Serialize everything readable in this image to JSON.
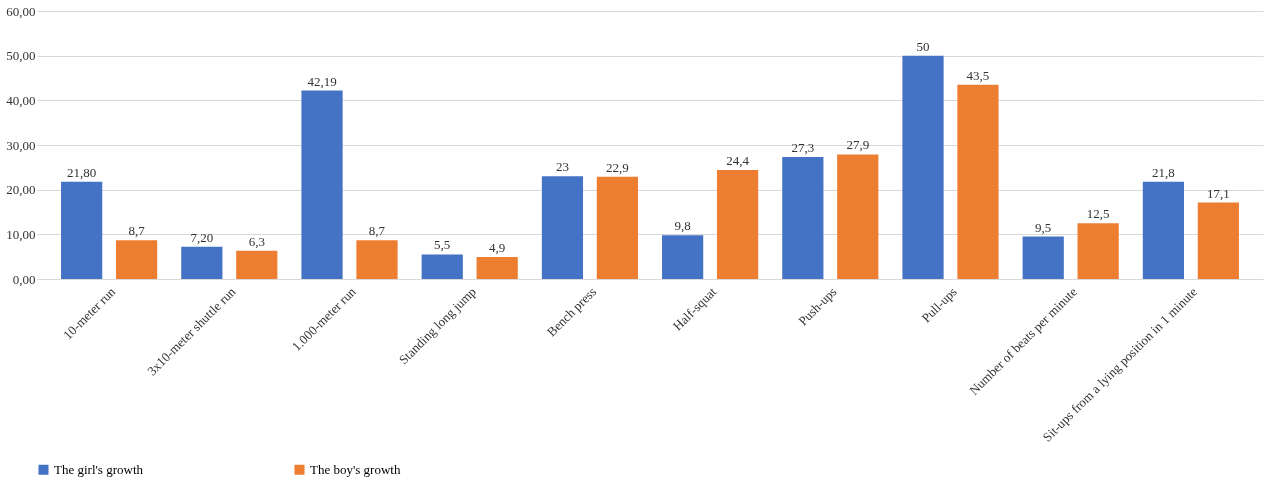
{
  "chart_data": {
    "type": "bar",
    "categories": [
      "10-meter run",
      "3x10-meter shuttle run",
      "1.000-meter run",
      "Standing long jump",
      "Bench press",
      "Half-squat",
      "Push-ups",
      "Pull-ups",
      "Number of beats per minute",
      "Sit-ups from a lying position in 1 minute"
    ],
    "series": [
      {
        "name": "The girl's growth",
        "color": "#4472c4",
        "values": [
          21.8,
          7.2,
          42.19,
          5.5,
          23,
          9.8,
          27.3,
          50,
          9.5,
          21.8
        ],
        "value_labels": [
          "21,80",
          "7,20",
          "42,19",
          "5,5",
          "23",
          "9,8",
          "27,3",
          "50",
          "9,5",
          "21,8"
        ]
      },
      {
        "name": "The boy's growth",
        "color": "#ed7d31",
        "values": [
          8.7,
          6.3,
          8.7,
          4.9,
          22.9,
          24.4,
          27.9,
          43.5,
          12.5,
          17.1
        ],
        "value_labels": [
          "8,7",
          "6,3",
          "8,7",
          "4,9",
          "22,9",
          "24,4",
          "27,9",
          "43,5",
          "12,5",
          "17,1"
        ]
      }
    ],
    "ylim": [
      0,
      60
    ],
    "yticks": [
      {
        "value": 0,
        "label": "0,00"
      },
      {
        "value": 10,
        "label": "10,00"
      },
      {
        "value": 20,
        "label": "20,00"
      },
      {
        "value": 30,
        "label": "30,00"
      },
      {
        "value": 40,
        "label": "40,00"
      },
      {
        "value": 50,
        "label": "50,00"
      },
      {
        "value": 60,
        "label": "60,00"
      }
    ],
    "grid": "y",
    "legend": "bottom"
  }
}
